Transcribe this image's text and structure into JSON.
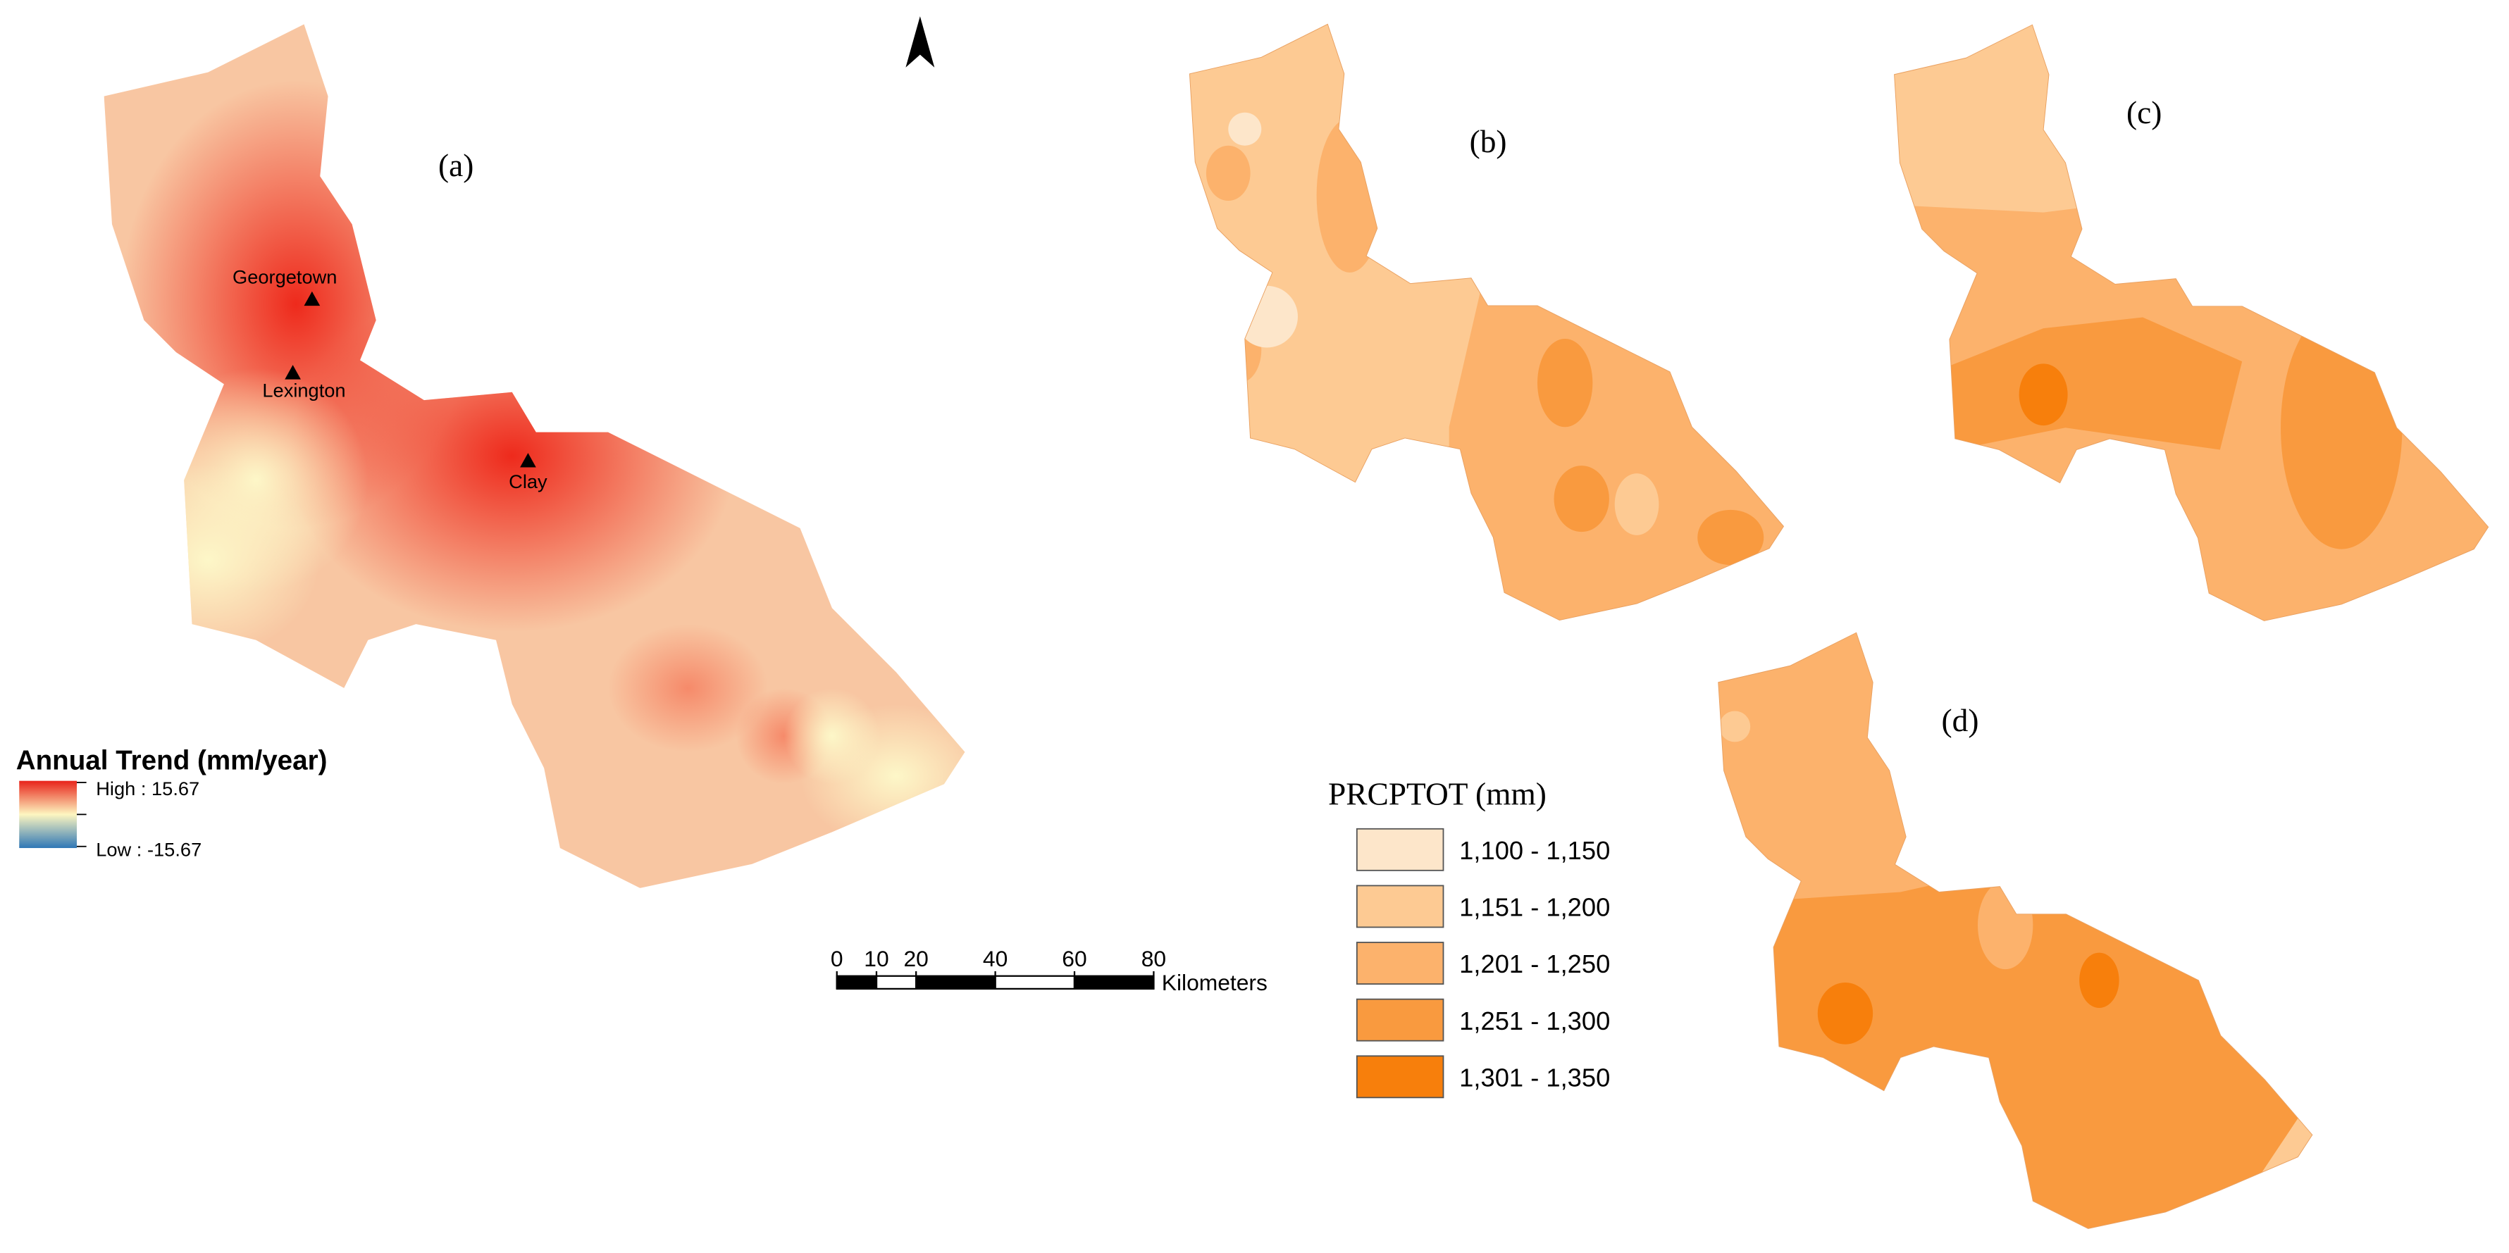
{
  "panels": [
    {
      "label": "(a)"
    },
    {
      "label": "(b)"
    },
    {
      "label": "(c)"
    },
    {
      "label": "(d)"
    }
  ],
  "places": [
    {
      "name": "Georgetown"
    },
    {
      "name": "Lexington"
    },
    {
      "name": "Clay"
    }
  ],
  "trend_legend": {
    "title": "Annual Trend (mm/year)",
    "high": "High : 15.67",
    "low": "Low : -15.67"
  },
  "scale_bar": {
    "ticks": [
      0,
      10,
      20,
      40,
      60,
      80
    ],
    "unit": "Kilometers"
  },
  "prcptot_legend": {
    "title": "PRCPTOT (mm)",
    "classes": [
      {
        "label": "1,100 - 1,150",
        "color": "#fde6ca"
      },
      {
        "label": "1,151 - 1,200",
        "color": "#fdca93"
      },
      {
        "label": "1,201 - 1,250",
        "color": "#fcb26c"
      },
      {
        "label": "1,251 - 1,300",
        "color": "#f99a3f"
      },
      {
        "label": "1,301 - 1,350",
        "color": "#f77f0c"
      }
    ]
  }
}
